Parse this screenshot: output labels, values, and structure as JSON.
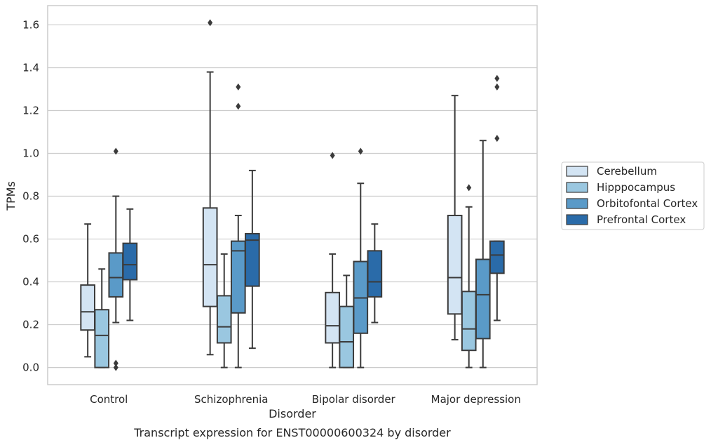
{
  "caption": "Transcript expression for ENST00000600324 by disorder",
  "chart_data": {
    "type": "box",
    "xlabel": "Disorder",
    "ylabel": "TPMs",
    "ylim": [
      -0.08,
      1.69
    ],
    "yticks": [
      0.0,
      0.2,
      0.4,
      0.6,
      0.8,
      1.0,
      1.2,
      1.4,
      1.6
    ],
    "ytick_labels": [
      "0.0",
      "0.2",
      "0.4",
      "0.6",
      "0.8",
      "1.0",
      "1.2",
      "1.4",
      "1.6"
    ],
    "grid": true,
    "legend_position": "right",
    "categories": [
      "Control",
      "Schizophrenia",
      "Bipolar disorder",
      "Major depression"
    ],
    "series": [
      {
        "name": "Cerebellum",
        "color": "#d3e4f3",
        "boxes": [
          {
            "whislo": 0.05,
            "q1": 0.175,
            "med": 0.26,
            "q3": 0.385,
            "whishi": 0.67,
            "fliers": []
          },
          {
            "whislo": 0.06,
            "q1": 0.285,
            "med": 0.48,
            "q3": 0.745,
            "whishi": 1.38,
            "fliers": [
              1.61
            ]
          },
          {
            "whislo": 0.0,
            "q1": 0.115,
            "med": 0.195,
            "q3": 0.35,
            "whishi": 0.53,
            "fliers": [
              0.99
            ]
          },
          {
            "whislo": 0.13,
            "q1": 0.25,
            "med": 0.42,
            "q3": 0.71,
            "whishi": 1.27,
            "fliers": []
          }
        ]
      },
      {
        "name": "Hipppocampus",
        "color": "#9ac7e0",
        "boxes": [
          {
            "whislo": 0.0,
            "q1": 0.0,
            "med": 0.15,
            "q3": 0.27,
            "whishi": 0.46,
            "fliers": []
          },
          {
            "whislo": 0.0,
            "q1": 0.115,
            "med": 0.19,
            "q3": 0.335,
            "whishi": 0.53,
            "fliers": []
          },
          {
            "whislo": 0.0,
            "q1": 0.0,
            "med": 0.12,
            "q3": 0.285,
            "whishi": 0.43,
            "fliers": []
          },
          {
            "whislo": 0.0,
            "q1": 0.08,
            "med": 0.18,
            "q3": 0.355,
            "whishi": 0.75,
            "fliers": [
              0.84
            ]
          }
        ]
      },
      {
        "name": "Orbitofontal Cortex",
        "color": "#5a9ac8",
        "boxes": [
          {
            "whislo": 0.21,
            "q1": 0.33,
            "med": 0.42,
            "q3": 0.535,
            "whishi": 0.8,
            "fliers": [
              1.01,
              0.0,
              0.02
            ]
          },
          {
            "whislo": 0.0,
            "q1": 0.255,
            "med": 0.545,
            "q3": 0.59,
            "whishi": 0.71,
            "fliers": [
              1.22,
              1.31
            ]
          },
          {
            "whislo": 0.0,
            "q1": 0.16,
            "med": 0.325,
            "q3": 0.495,
            "whishi": 0.86,
            "fliers": [
              1.01
            ]
          },
          {
            "whislo": 0.0,
            "q1": 0.135,
            "med": 0.34,
            "q3": 0.505,
            "whishi": 1.06,
            "fliers": []
          }
        ]
      },
      {
        "name": "Prefrontal Cortex",
        "color": "#2a6ba9",
        "boxes": [
          {
            "whislo": 0.22,
            "q1": 0.41,
            "med": 0.48,
            "q3": 0.58,
            "whishi": 0.74,
            "fliers": []
          },
          {
            "whislo": 0.09,
            "q1": 0.38,
            "med": 0.595,
            "q3": 0.625,
            "whishi": 0.92,
            "fliers": []
          },
          {
            "whislo": 0.21,
            "q1": 0.33,
            "med": 0.4,
            "q3": 0.545,
            "whishi": 0.67,
            "fliers": []
          },
          {
            "whislo": 0.22,
            "q1": 0.44,
            "med": 0.525,
            "q3": 0.59,
            "whishi": 0.59,
            "fliers": [
              1.07,
              1.31,
              1.35
            ]
          }
        ]
      }
    ]
  }
}
